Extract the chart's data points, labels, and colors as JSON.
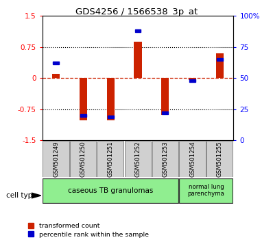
{
  "title": "GDS4256 / 1566538_3p_at",
  "samples": [
    "GSM501249",
    "GSM501250",
    "GSM501251",
    "GSM501252",
    "GSM501253",
    "GSM501254",
    "GSM501255"
  ],
  "transformed_count": [
    0.1,
    -1.02,
    -1.02,
    0.88,
    -0.88,
    -0.05,
    0.6
  ],
  "percentile_rank": [
    62,
    20,
    19,
    88,
    22,
    48,
    65
  ],
  "ylim_left": [
    -1.5,
    1.5
  ],
  "yticks_left": [
    -1.5,
    -0.75,
    0,
    0.75,
    1.5
  ],
  "ytick_labels_left": [
    "-1.5",
    "-0.75",
    "0",
    "0.75",
    "1.5"
  ],
  "right_tick_vals": [
    0,
    25,
    50,
    75,
    100
  ],
  "right_tick_labels": [
    "0",
    "25",
    "50",
    "75",
    "100%"
  ],
  "bar_color": "#CC2200",
  "dot_color": "#0000CC",
  "zero_line_color": "#CC2200",
  "group1_label": "caseous TB granulomas",
  "group2_label": "normal lung\nparenchyma",
  "group_color": "#90EE90",
  "sample_box_color": "#d0d0d0",
  "legend_items": [
    "transformed count",
    "percentile rank within the sample"
  ],
  "cell_type_label": "cell type"
}
